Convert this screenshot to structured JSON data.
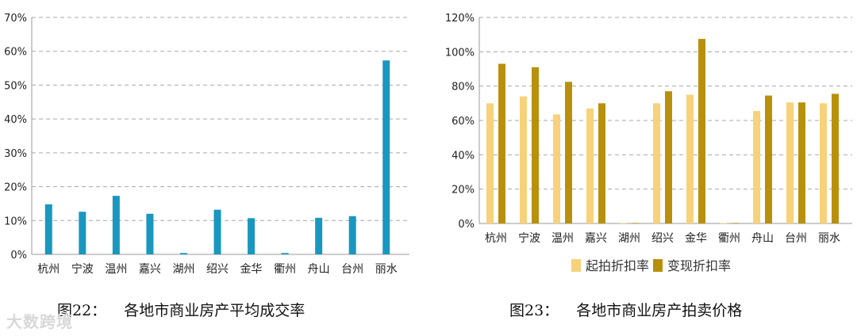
{
  "chart_data": [
    {
      "type": "bar",
      "categories": [
        "杭州",
        "宁波",
        "温州",
        "嘉兴",
        "湖州",
        "绍兴",
        "金华",
        "衢州",
        "舟山",
        "台州",
        "丽水"
      ],
      "values": [
        14.8,
        12.6,
        17.3,
        12.0,
        0.4,
        13.2,
        10.7,
        0.4,
        10.8,
        11.3,
        57.3
      ],
      "yticks": [
        "0%",
        "10%",
        "20%",
        "30%",
        "40%",
        "50%",
        "60%",
        "70%"
      ],
      "ylim": [
        0,
        70
      ],
      "color": "#1a97bf",
      "grid": true,
      "caption_num": "图22：",
      "caption_text": "各地市商业房产平均成交率"
    },
    {
      "type": "bar",
      "categories": [
        "杭州",
        "宁波",
        "温州",
        "嘉兴",
        "湖州",
        "绍兴",
        "金华",
        "衢州",
        "舟山",
        "台州",
        "丽水"
      ],
      "series": [
        {
          "name": "起拍折扣率",
          "color": "#f7d27a",
          "values": [
            70,
            74,
            63.5,
            67,
            0.3,
            70,
            75,
            0.3,
            65.5,
            70.5,
            70
          ]
        },
        {
          "name": "变现折扣率",
          "color": "#b8900c",
          "values": [
            93,
            91,
            82.5,
            70,
            0.3,
            77,
            107.5,
            0.3,
            74.5,
            70.5,
            75.5
          ]
        }
      ],
      "yticks": [
        "0%",
        "20%",
        "40%",
        "60%",
        "80%",
        "100%",
        "120%"
      ],
      "ylim": [
        0,
        120
      ],
      "grid": true,
      "legend_position": "bottom",
      "caption_num": "图23：",
      "caption_text": "各地市商业房产拍卖价格"
    }
  ],
  "watermark": "大数跨境"
}
